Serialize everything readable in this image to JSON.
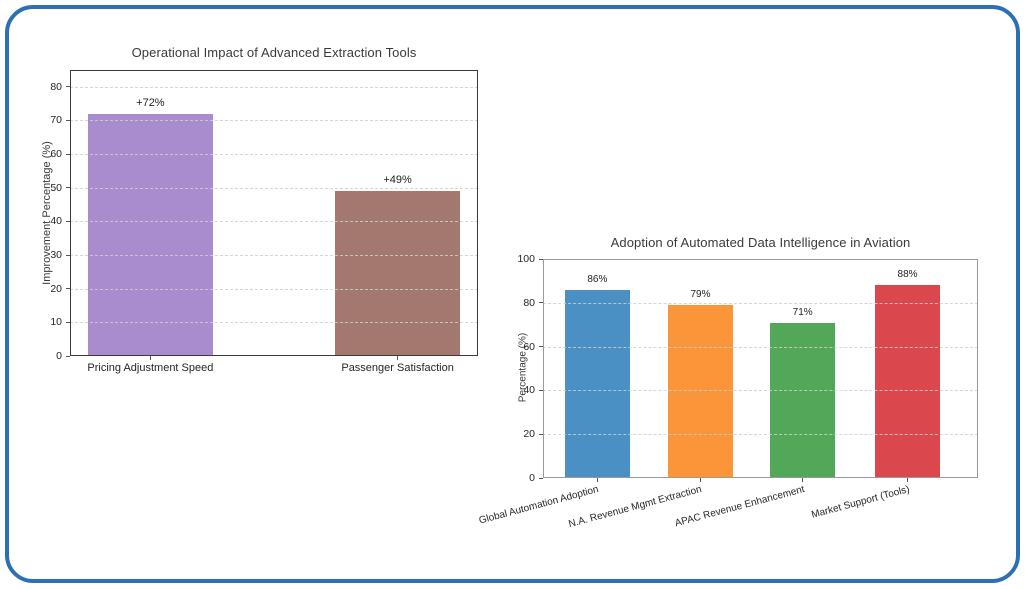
{
  "frame": {
    "border_color": "#2d6fb4",
    "background": "#ffffff"
  },
  "chart_data": [
    {
      "type": "bar",
      "title": "Operational Impact of Advanced Extraction Tools",
      "xlabel": "",
      "ylabel": "Improvement Percentage (%)",
      "categories": [
        "Pricing Adjustment Speed",
        "Passenger Satisfaction"
      ],
      "values": [
        72,
        49
      ],
      "bar_labels": [
        "+72%",
        "+49%"
      ],
      "bar_colors": [
        "#a98ccd",
        "#a3786e"
      ],
      "yticks": [
        0,
        10,
        20,
        30,
        40,
        50,
        60,
        70,
        80
      ],
      "ylim": [
        0,
        85
      ],
      "grid": "dashed-horizontal",
      "legend": "none"
    },
    {
      "type": "bar",
      "title": "Adoption of Automated Data Intelligence in Aviation",
      "xlabel": "",
      "ylabel": "Percentage (%)",
      "categories": [
        "Global Automation Adoption",
        "N.A. Revenue Mgmt Extraction",
        "APAC Revenue Enhancement",
        "Market Support (Tools)"
      ],
      "values": [
        86,
        79,
        71,
        88
      ],
      "bar_labels": [
        "86%",
        "79%",
        "71%",
        "88%"
      ],
      "bar_colors": [
        "#4a90c4",
        "#fa9639",
        "#53a758",
        "#da484e"
      ],
      "yticks": [
        0,
        20,
        40,
        60,
        80,
        100
      ],
      "ylim": [
        0,
        100
      ],
      "grid": "dashed-horizontal",
      "xtick_rotation_deg": 15,
      "legend": "none"
    }
  ]
}
